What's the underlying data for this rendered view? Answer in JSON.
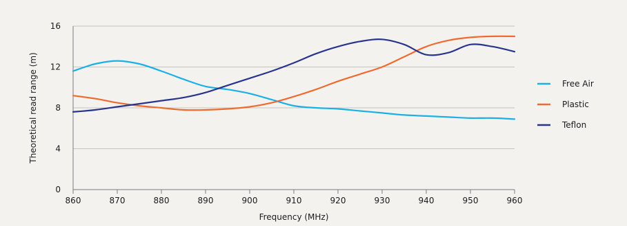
{
  "chart_data": {
    "type": "line",
    "title": "",
    "xlabel": "Frequency (MHz)",
    "ylabel": "Theoretical read range (m)",
    "xlim": [
      860,
      960
    ],
    "ylim": [
      0,
      16
    ],
    "x_ticks": [
      860,
      870,
      880,
      890,
      900,
      910,
      920,
      930,
      940,
      950,
      960
    ],
    "y_ticks": [
      0,
      4,
      8,
      12,
      16
    ],
    "grid": "horizontal",
    "legend_position": "right",
    "x": [
      860,
      865,
      870,
      875,
      880,
      885,
      890,
      895,
      900,
      905,
      910,
      915,
      920,
      925,
      930,
      935,
      940,
      945,
      950,
      955,
      960
    ],
    "series": [
      {
        "name": "Free Air",
        "color": "#1ab0e6",
        "values": [
          11.6,
          12.3,
          12.6,
          12.3,
          11.6,
          10.8,
          10.1,
          9.8,
          9.4,
          8.8,
          8.2,
          8.0,
          7.9,
          7.7,
          7.5,
          7.3,
          7.2,
          7.1,
          7.0,
          7.0,
          6.9
        ]
      },
      {
        "name": "Plastic",
        "color": "#ef6a2f",
        "values": [
          9.2,
          8.9,
          8.5,
          8.2,
          8.0,
          7.8,
          7.8,
          7.9,
          8.1,
          8.5,
          9.1,
          9.8,
          10.6,
          11.3,
          12.0,
          13.0,
          14.0,
          14.6,
          14.9,
          15.0,
          15.0
        ]
      },
      {
        "name": "Teflon",
        "color": "#28348c",
        "values": [
          7.6,
          7.8,
          8.1,
          8.4,
          8.7,
          9.0,
          9.5,
          10.2,
          10.9,
          11.6,
          12.4,
          13.3,
          14.0,
          14.5,
          14.7,
          14.2,
          13.2,
          13.4,
          14.2,
          14.0,
          13.5
        ]
      }
    ]
  }
}
